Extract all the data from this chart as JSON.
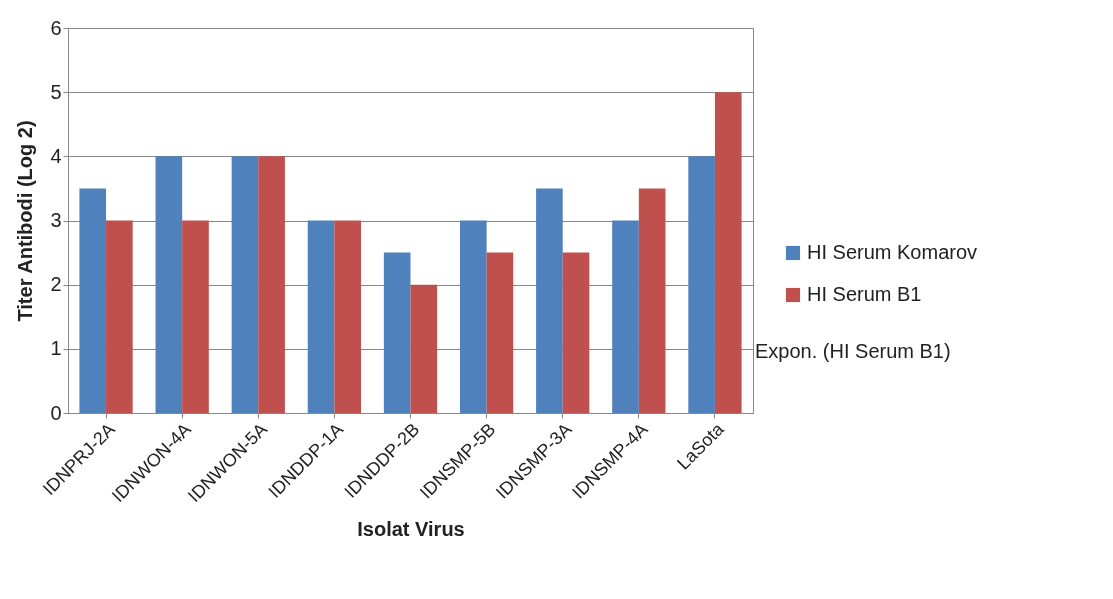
{
  "chart_data": {
    "type": "bar",
    "xlabel": "Isolat Virus",
    "ylabel": "Titer Antibodi (Log 2)",
    "categories": [
      "IDNPRJ-2A",
      "IDNWON-4A",
      "IDNWON-5A",
      "IDNDDP-1A",
      "IDNDDP-2B",
      "IDNSMP-5B",
      "IDNSMP-3A",
      "IDNSMP-4A",
      "LaSota"
    ],
    "series": [
      {
        "name": "HI Serum Komarov",
        "color": "#4f81bd",
        "values": [
          3.5,
          4,
          4,
          3,
          2.5,
          3,
          3.5,
          3,
          4
        ]
      },
      {
        "name": "HI Serum B1",
        "color": "#c0504d",
        "values": [
          3,
          3,
          4,
          3,
          2,
          2.5,
          2.5,
          3.5,
          5
        ]
      }
    ],
    "ylim": [
      0,
      6
    ],
    "yticks": [
      0,
      1,
      2,
      3,
      4,
      5,
      6
    ],
    "grid": "y",
    "legend": "right",
    "annotations": [
      "Expon. (HI Serum B1)"
    ]
  }
}
